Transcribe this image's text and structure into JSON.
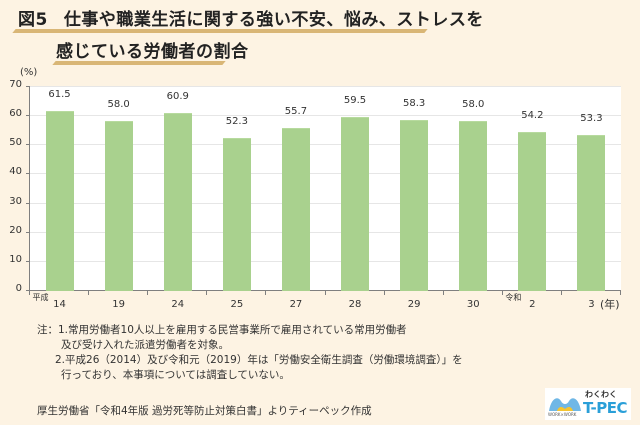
{
  "title": {
    "figure_label": "図5",
    "line1": "仕事や職業生活に関する強い不安、悩み、ストレスを",
    "line2": "感じている労働者の割合"
  },
  "chart_data": {
    "type": "bar",
    "title": "図5 仕事や職業生活に関する強い不安、悩み、ストレスを感じている労働者の割合",
    "ylabel": "(%)",
    "xlabel": "(年)",
    "ylim": [
      0,
      70
    ],
    "yticks": [
      0,
      10,
      20,
      30,
      40,
      50,
      60,
      70
    ],
    "grid": true,
    "legend": null,
    "bar_color": "#a9d18e",
    "categories": [
      "14",
      "19",
      "24",
      "25",
      "27",
      "28",
      "29",
      "30",
      "2",
      "3"
    ],
    "era_labels": [
      {
        "index": 0,
        "label": "平成"
      },
      {
        "index": 8,
        "label": "令和"
      }
    ],
    "values": [
      61.5,
      58.0,
      60.9,
      52.3,
      55.7,
      59.5,
      58.3,
      58.0,
      54.2,
      53.3
    ],
    "value_labels": [
      "61.5",
      "58.0",
      "60.9",
      "52.3",
      "55.7",
      "59.5",
      "58.3",
      "58.0",
      "54.2",
      "53.3"
    ]
  },
  "notes": {
    "line1": "注：1.常用労働者10人以上を雇用する民営事業所で雇用されている常用労働者",
    "line2": "及び受け入れた派遣労働者を対象。",
    "line3": "2.平成26（2014）及び令和元（2019）年は「労働安全衛生調査（労働環境調査）」を",
    "line4": "行っており、本事項については調査していない。"
  },
  "source": "厚生労働省「令和4年版 過労死等防止対策白書」よりティーペック作成",
  "logo": {
    "small": "わくわく",
    "main": "T-PEC",
    "sub": "WORK×WORK"
  }
}
